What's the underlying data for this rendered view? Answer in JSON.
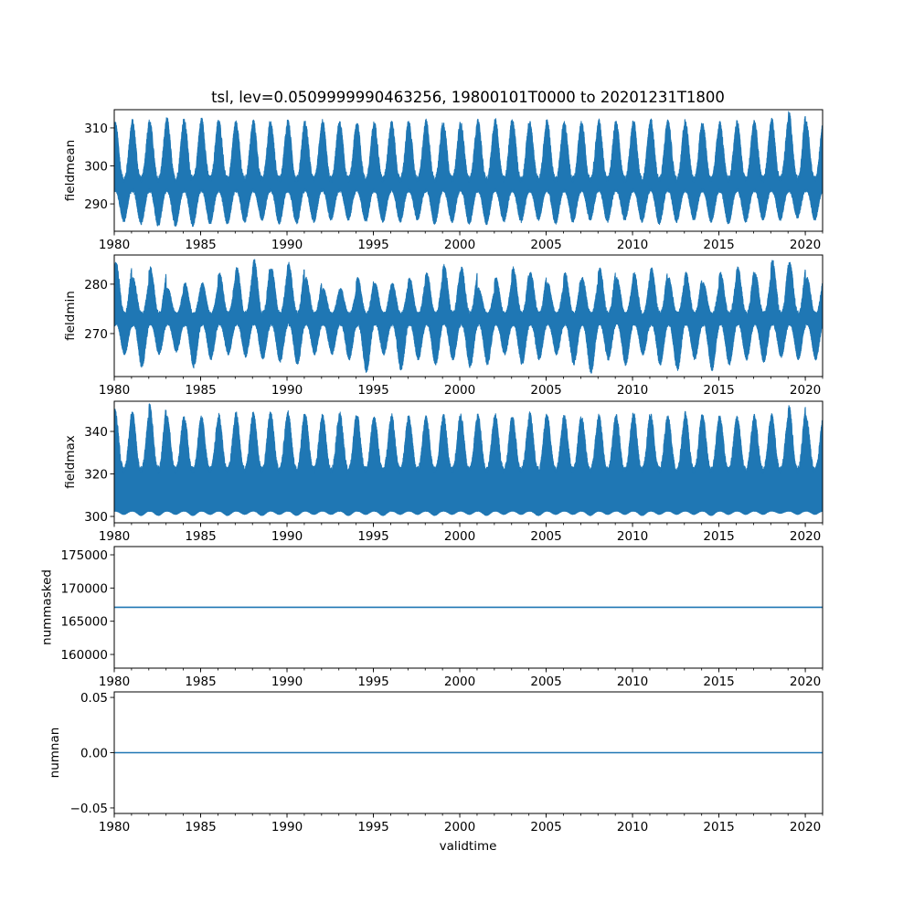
{
  "chart_data": {
    "type": "line",
    "title": "tsl, lev=0.0509999990463256, 19800101T0000 to 20201231T1800",
    "xlabel": "validtime",
    "xlim": [
      1980,
      2021
    ],
    "x_major_ticks": [
      1980,
      1985,
      1990,
      1995,
      2000,
      2005,
      2010,
      2015,
      2020
    ],
    "x_major_tick_labels": [
      "1980",
      "1985",
      "1990",
      "1995",
      "2000",
      "2005",
      "2010",
      "2015",
      "2020"
    ],
    "x_minor_step_years": 1,
    "line_color": "#1f77b4",
    "panels": [
      {
        "ylabel": "fieldmean",
        "ylim": [
          282.8,
          314.8
        ],
        "yticks": [
          290,
          300,
          310
        ],
        "ytick_labels": [
          "290",
          "300",
          "310"
        ],
        "series_kind": "seasonal",
        "peak_phase": 0.05,
        "trough_phase": 0.55,
        "annual_peaks": [
          311,
          311.5,
          311.5,
          312,
          311.5,
          312,
          311.5,
          311,
          311.5,
          311,
          311.5,
          311,
          311.5,
          311,
          311,
          311,
          311.5,
          311,
          311.5,
          311,
          311,
          311.5,
          312,
          311.5,
          311,
          311.5,
          311,
          311,
          311.5,
          311,
          311.5,
          312,
          311.5,
          311.5,
          311,
          311,
          311.5,
          311.5,
          312,
          313.5,
          311
        ],
        "annual_troughs": [
          285.5,
          285,
          284.5,
          284.5,
          284.5,
          285,
          285,
          285.5,
          286,
          285,
          285,
          285.5,
          286,
          286,
          285.5,
          285.5,
          285.5,
          286,
          285,
          285.5,
          285,
          285,
          285.5,
          285.5,
          286,
          285,
          285.5,
          286,
          285.5,
          286,
          285.5,
          285,
          285.5,
          286,
          285.5,
          285,
          285.5,
          286,
          286,
          286.5,
          286
        ],
        "upper_at_trough": 296.5,
        "lower_at_peak": 293.5
      },
      {
        "ylabel": "fieldmin",
        "ylim": [
          261.3,
          285.9
        ],
        "yticks": [
          270,
          280
        ],
        "ytick_labels": [
          "270",
          "280"
        ],
        "series_kind": "seasonal",
        "peak_phase": 0.1,
        "trough_phase": 0.55,
        "annual_peaks": [
          284,
          281,
          283,
          279,
          280,
          280,
          282,
          283,
          284.5,
          283,
          284,
          281,
          279,
          279,
          281,
          280,
          280,
          281,
          282,
          283.5,
          283,
          279,
          281,
          283,
          282,
          280,
          282,
          281,
          283,
          281,
          282,
          283,
          281,
          282,
          280,
          282,
          283,
          282,
          284.5,
          284,
          281
        ],
        "annual_troughs": [
          266,
          263.5,
          266,
          266.5,
          263.5,
          265,
          266,
          265.5,
          265,
          264.5,
          264,
          266,
          266,
          265,
          262.5,
          266,
          263,
          265,
          264,
          265,
          263.5,
          264,
          266,
          264,
          265,
          266,
          264,
          262.5,
          265,
          264,
          266,
          264,
          263,
          265,
          263,
          264,
          265,
          264.5,
          265.5,
          265,
          265
        ],
        "upper_at_trough": 274,
        "lower_at_peak": 272
      },
      {
        "ylabel": "fieldmax",
        "ylim": [
          297,
          354.2
        ],
        "yticks": [
          300,
          320,
          340
        ],
        "ytick_labels": [
          "300",
          "320",
          "340"
        ],
        "series_kind": "seasonal",
        "peak_phase": 0.05,
        "trough_phase": 0.55,
        "annual_peaks": [
          349,
          348,
          351.5,
          347,
          346,
          346,
          347,
          348,
          348,
          348,
          349,
          347,
          347,
          348,
          347,
          346,
          347,
          346,
          346,
          347,
          347,
          347,
          347,
          346,
          348,
          347,
          347,
          346,
          347,
          347,
          348,
          347,
          346,
          348,
          347,
          346,
          346,
          347,
          347,
          351,
          346
        ],
        "annual_troughs": [
          301,
          300.5,
          300.5,
          301,
          300.5,
          301,
          300.5,
          301,
          300.5,
          301,
          300.5,
          301,
          301,
          300.5,
          301,
          300.5,
          301,
          301,
          300.5,
          301,
          301,
          300.5,
          301,
          301,
          300.5,
          301,
          301,
          300.5,
          301,
          301,
          300.5,
          301,
          301,
          301,
          300.5,
          301,
          301,
          301,
          301.5,
          301,
          301
        ],
        "upper_at_trough": 322,
        "lower_at_peak": 302.5
      },
      {
        "ylabel": "nummasked",
        "ylim": [
          157940,
          176240
        ],
        "yticks": [
          160000,
          165000,
          170000,
          175000
        ],
        "ytick_labels": [
          "160000",
          "165000",
          "170000",
          "175000"
        ],
        "series_kind": "constant",
        "value": 167100
      },
      {
        "ylabel": "numnan",
        "ylim": [
          -0.055,
          0.055
        ],
        "yticks": [
          -0.05,
          0.0,
          0.05
        ],
        "ytick_labels": [
          "−0.05",
          "0.00",
          "0.05"
        ],
        "series_kind": "constant",
        "value": 0
      }
    ]
  }
}
